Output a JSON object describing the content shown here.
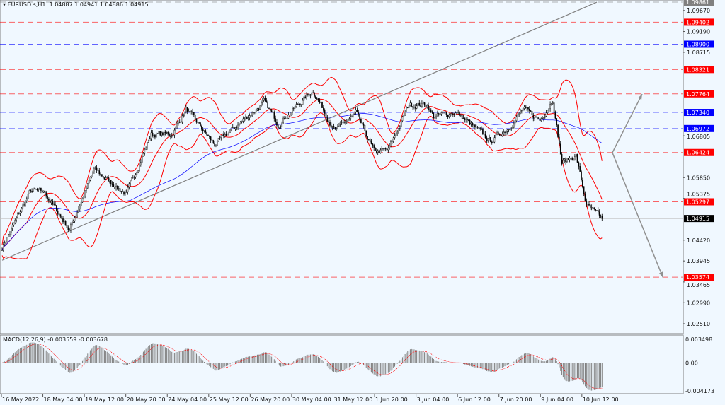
{
  "header": {
    "symbol": "EURUSD.s,H1",
    "ohlc": "1.04887 1.04941 1.04886 1.04915"
  },
  "chart_data": {
    "type": "candlestick",
    "symbol": "EURUSD.s",
    "timeframe": "H1",
    "ylim": [
      1.0251,
      1.09861
    ],
    "price_ticks": [
      "1.09670",
      "1.09190",
      "1.08715",
      "1.06805",
      "1.05850",
      "1.05375",
      "1.04420",
      "1.03945",
      "1.03465",
      "1.02990",
      "1.02510"
    ],
    "time_labels": [
      "16 May 2022",
      "18 May 04:00",
      "19 May 12:00",
      "20 May 20:00",
      "24 May 04:00",
      "25 May 12:00",
      "26 May 20:00",
      "30 May 04:00",
      "31 May 12:00",
      "1 Jun 20:00",
      "3 Jun 04:00",
      "6 Jun 12:00",
      "7 Jun 20:00",
      "9 Jun 04:00",
      "10 Jun 12:00"
    ],
    "bars_per_label": 32,
    "close_path": [
      [
        0,
        1.0425
      ],
      [
        22,
        1.0555
      ],
      [
        33,
        1.055
      ],
      [
        52,
        1.0466
      ],
      [
        71,
        1.0603
      ],
      [
        96,
        1.0547
      ],
      [
        115,
        1.0684
      ],
      [
        131,
        1.0684
      ],
      [
        142,
        1.0741
      ],
      [
        164,
        1.066
      ],
      [
        202,
        1.0757
      ],
      [
        213,
        1.0708
      ],
      [
        240,
        1.0784
      ],
      [
        257,
        1.0692
      ],
      [
        273,
        1.0732
      ],
      [
        287,
        1.0644
      ],
      [
        298,
        1.0647
      ],
      [
        314,
        1.0752
      ],
      [
        328,
        1.0752
      ],
      [
        333,
        1.0724
      ],
      [
        350,
        1.0735
      ],
      [
        377,
        1.0668
      ],
      [
        391,
        1.07
      ],
      [
        402,
        1.0741
      ],
      [
        415,
        1.0716
      ],
      [
        425,
        1.0765
      ],
      [
        432,
        1.0619
      ],
      [
        443,
        1.0636
      ],
      [
        451,
        1.0522
      ],
      [
        458,
        1.0502
      ],
      [
        463,
        1.04915
      ]
    ],
    "current_price": "1.04915",
    "levels": [
      {
        "price": "1.09861",
        "color": "#808080"
      },
      {
        "price": "1.09402",
        "color": "#ff0000"
      },
      {
        "price": "1.08900",
        "color": "#0000ff"
      },
      {
        "price": "1.08321",
        "color": "#ff0000"
      },
      {
        "price": "1.07764",
        "color": "#ff0000"
      },
      {
        "price": "1.07340",
        "color": "#0000ff"
      },
      {
        "price": "1.06972",
        "color": "#0000ff"
      },
      {
        "price": "1.06424",
        "color": "#ff0000"
      },
      {
        "price": "1.05297",
        "color": "#ff0000"
      },
      {
        "price": "1.03574",
        "color": "#ff0000"
      }
    ],
    "trendline": [
      [
        0,
        1.0396
      ],
      [
        459,
        1.0986
      ]
    ],
    "arrows": [
      [
        [
          471,
          1.0642
        ],
        [
          494,
          1.0776
        ]
      ],
      [
        [
          471,
          1.0642
        ],
        [
          510,
          1.0357
        ]
      ]
    ],
    "indicators": {
      "bollinger": {
        "period": 20,
        "deviation": 2,
        "color": "#ff0000"
      },
      "ma": {
        "period": 100,
        "color": "#0000ff"
      }
    },
    "macd": {
      "label": "MACD(12,26,9) -0.003559 -0.003678",
      "ticks": [
        "0.003498",
        "0.00",
        "-0.004173"
      ],
      "ylim": [
        -0.004173,
        0.003498
      ]
    }
  }
}
